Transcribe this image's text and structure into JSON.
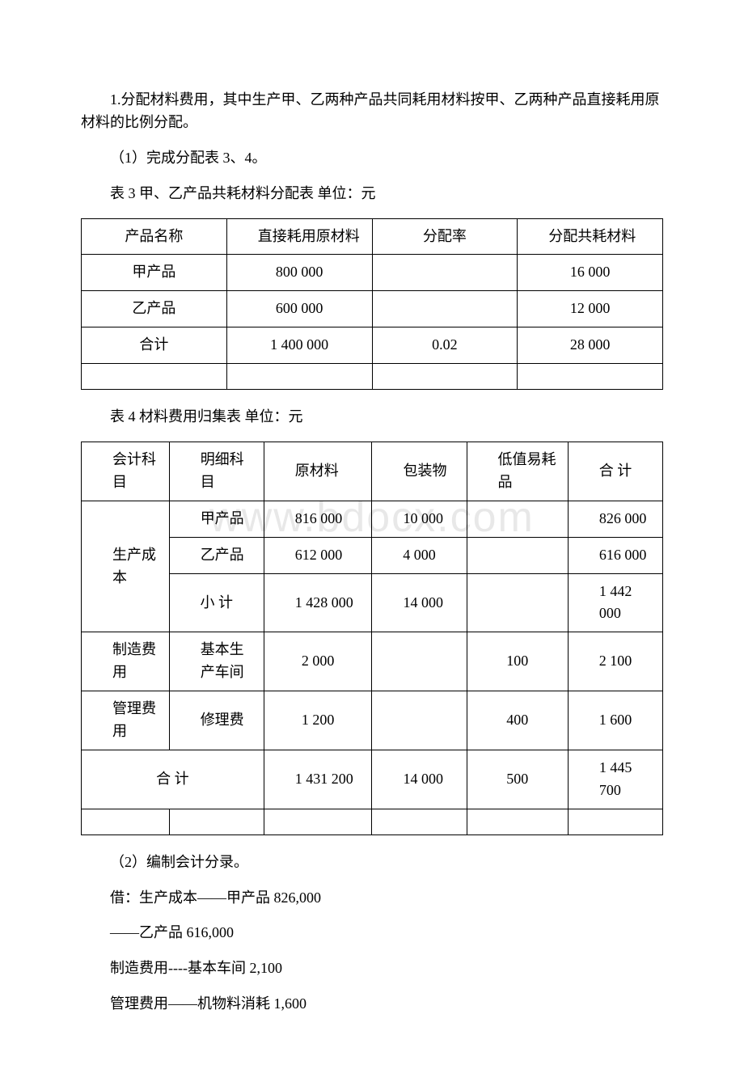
{
  "watermark": "www.bdocx.com",
  "intro": {
    "p1": "1.分配材料费用，其中生产甲、乙两种产品共同耗用材料按甲、乙两种产品直接耗用原材料的比例分配。",
    "p2": "（1）完成分配表 3、4。",
    "t3_caption": "表 3 甲、乙产品共耗材料分配表 单位：元",
    "t4_caption": "表 4 材料费用归集表 单位：元"
  },
  "table3": {
    "h1": "产品名称",
    "h2": "直接耗用原材料",
    "h3": "分配率",
    "h4": "分配共耗材料",
    "rows": [
      {
        "name": "甲产品",
        "direct": "800 000",
        "rate": "",
        "alloc": "16 000"
      },
      {
        "name": "乙产品",
        "direct": "600 000",
        "rate": "",
        "alloc": "12 000"
      },
      {
        "name": "合计",
        "direct": "1 400 000",
        "rate": "0.02",
        "alloc": "28 000"
      }
    ]
  },
  "table4": {
    "h1": "会计科目",
    "h2": "明细科目",
    "h3": "原材料",
    "h4": "包装物",
    "h5": "低值易耗品",
    "h6": "合 计",
    "group1_label": "生产成本",
    "rows_group1": [
      {
        "sub": "甲产品",
        "c3": "816 000",
        "c4": "10 000",
        "c5": "",
        "c6": "826 000"
      },
      {
        "sub": "乙产品",
        "c3": "612 000",
        "c4": "4 000",
        "c5": "",
        "c6": "616 000"
      },
      {
        "sub": "小 计",
        "c3": "1 428 000",
        "c4": "14 000",
        "c5": "",
        "c6": "1 442 000"
      }
    ],
    "row_mfg": {
      "acct": "制造费用",
      "sub": "基本生产车间",
      "c3": "2 000",
      "c4": "",
      "c5": "100",
      "c6": "2 100"
    },
    "row_mgt": {
      "acct": "管理费用",
      "sub": "修理费",
      "c3": "1 200",
      "c4": "",
      "c5": "400",
      "c6": "1 600"
    },
    "row_total": {
      "label": "合 计",
      "c3": "1 431 200",
      "c4": "14 000",
      "c5": "500",
      "c6": "1 445 700"
    }
  },
  "footer": {
    "p1": "（2）编制会计分录。",
    "p2": "借：生产成本——甲产品 826,000",
    "p3": "——乙产品  616,000",
    "p4": "制造费用----基本车间 2,100",
    "p5": "管理费用——机物料消耗 1,600"
  }
}
